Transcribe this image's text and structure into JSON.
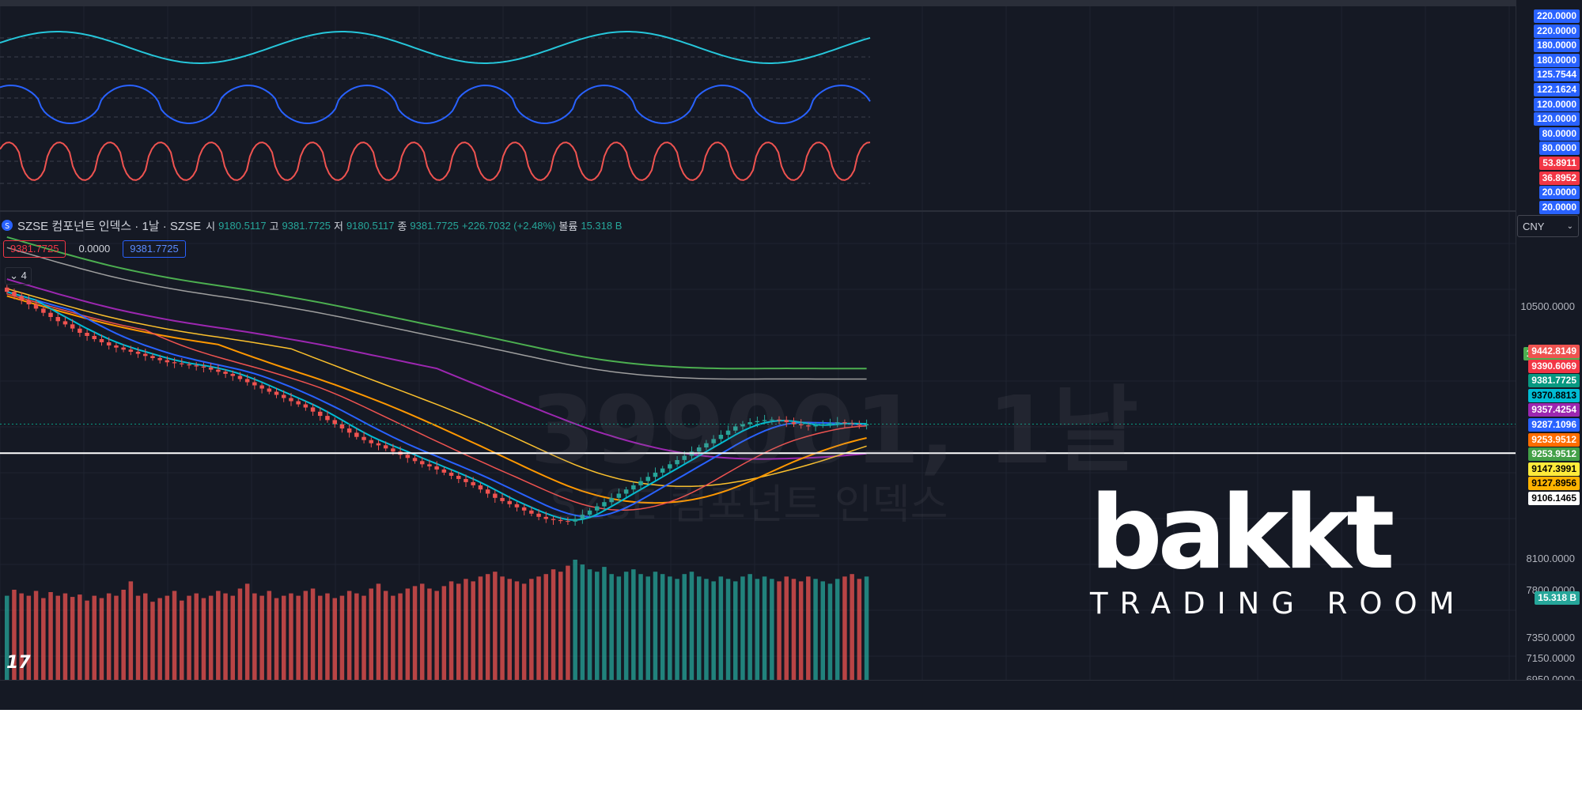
{
  "symbol": {
    "title": "SZSE 컴포넌트 인덱스 · 1날 · SZSE",
    "icon": "szse-index-icon",
    "ohlc": {
      "open_label": "시",
      "open": "9180.5117",
      "high_label": "고",
      "high": "9381.7725",
      "low_label": "저",
      "low": "9180.5117",
      "close_label": "종",
      "close": "9381.7725",
      "change": "+226.7032 (+2.48%)",
      "volume_label": "볼륨",
      "volume": "15.318 B"
    }
  },
  "badges": {
    "bid": "9381.7725",
    "spread": "0.0000",
    "ask": "9381.7725"
  },
  "indicator_count": "4",
  "currency": "CNY",
  "watermark": {
    "line1": "399001, 1날",
    "line2": "SZSE 컴포넌트 인덱스"
  },
  "logo": {
    "word": "bakkt",
    "tag": "TRADING ROOM"
  },
  "tv_logo": "17",
  "osc_scale": [
    {
      "v": "220.0000",
      "bg": "#2962ff"
    },
    {
      "v": "220.0000",
      "bg": "#2962ff"
    },
    {
      "v": "180.0000",
      "bg": "#2962ff"
    },
    {
      "v": "180.0000",
      "bg": "#2962ff"
    },
    {
      "v": "125.7544",
      "bg": "#2962ff"
    },
    {
      "v": "122.1624",
      "bg": "#2962ff"
    },
    {
      "v": "120.0000",
      "bg": "#2962ff"
    },
    {
      "v": "120.0000",
      "bg": "#2962ff"
    },
    {
      "v": "80.0000",
      "bg": "#2962ff"
    },
    {
      "v": "80.0000",
      "bg": "#2962ff"
    },
    {
      "v": "53.8911",
      "bg": "#f23645"
    },
    {
      "v": "36.8952",
      "bg": "#f23645"
    },
    {
      "v": "20.0000",
      "bg": "#2962ff"
    },
    {
      "v": "20.0000",
      "bg": "#2962ff"
    }
  ],
  "price_scale_ticks": [
    {
      "v": "10500.0000",
      "y": 10500
    },
    {
      "v": "8100.0000",
      "y": 8100
    },
    {
      "v": "7800.0000",
      "y": 7800
    },
    {
      "v": "7350.0000",
      "y": 7350
    },
    {
      "v": "7150.0000",
      "y": 7150
    },
    {
      "v": "6950.0000",
      "y": 6950
    }
  ],
  "price_labels": [
    {
      "v": "10058.0945",
      "bg": "#4caf50",
      "fg": "#ffffff"
    },
    {
      "v": "9442.8149",
      "bg": "#ef5350",
      "fg": "#ffffff"
    },
    {
      "v": "9390.6069",
      "bg": "#f23645",
      "fg": "#ffffff"
    },
    {
      "v": "9381.7725",
      "bg": "#089981",
      "fg": "#ffffff"
    },
    {
      "v": "9370.8813",
      "bg": "#00bcd4",
      "fg": "#000000"
    },
    {
      "v": "9357.4254",
      "bg": "#9c27b0",
      "fg": "#ffffff"
    },
    {
      "v": "9287.1096",
      "bg": "#2962ff",
      "fg": "#ffffff"
    },
    {
      "v": "9253.9512",
      "bg": "#ff6d00",
      "fg": "#ffffff"
    },
    {
      "v": "9253.9512",
      "bg": "#43a047",
      "fg": "#ffffff"
    },
    {
      "v": "9147.3991",
      "bg": "#ffeb3b",
      "fg": "#000000"
    },
    {
      "v": "9127.8956",
      "bg": "#ffb300",
      "fg": "#000000"
    },
    {
      "v": "9106.1465",
      "bg": "#ffffff",
      "fg": "#000000"
    }
  ],
  "volume_label": "15.318 B",
  "chart_data": [
    {
      "type": "candlestick",
      "title": "SZSE 컴포넌트 인덱스 · 1날 · SZSE",
      "ylim": [
        6950,
        11400
      ],
      "last_close": 9381.7725,
      "horizontal_line": 9106.1465,
      "close": [
        10640,
        10600,
        10560,
        10520,
        10480,
        10440,
        10400,
        10360,
        10330,
        10290,
        10250,
        10220,
        10190,
        10160,
        10130,
        10110,
        10090,
        10070,
        10050,
        10030,
        10010,
        9990,
        9970,
        9960,
        9950,
        9940,
        9930,
        9920,
        9900,
        9880,
        9860,
        9840,
        9810,
        9780,
        9750,
        9720,
        9690,
        9660,
        9630,
        9600,
        9570,
        9540,
        9500,
        9460,
        9420,
        9380,
        9340,
        9300,
        9260,
        9230,
        9200,
        9180,
        9150,
        9120,
        9090,
        9060,
        9030,
        9000,
        8980,
        8950,
        8920,
        8890,
        8860,
        8830,
        8800,
        8760,
        8720,
        8680,
        8650,
        8620,
        8590,
        8560,
        8530,
        8500,
        8480,
        8470,
        8460,
        8455,
        8480,
        8520,
        8560,
        8600,
        8640,
        8680,
        8720,
        8760,
        8800,
        8840,
        8880,
        8920,
        8960,
        9000,
        9040,
        9080,
        9120,
        9160,
        9200,
        9240,
        9280,
        9320,
        9360,
        9380,
        9400,
        9410,
        9420,
        9425,
        9420,
        9400,
        9380,
        9370,
        9360,
        9370,
        9380,
        9390,
        9400,
        9390,
        9380,
        9370,
        9381.77
      ],
      "volume_relative": [
        0.7,
        0.75,
        0.72,
        0.7,
        0.74,
        0.68,
        0.73,
        0.7,
        0.72,
        0.69,
        0.71,
        0.66,
        0.7,
        0.68,
        0.72,
        0.7,
        0.75,
        0.82,
        0.7,
        0.72,
        0.65,
        0.68,
        0.7,
        0.74,
        0.66,
        0.7,
        0.72,
        0.68,
        0.7,
        0.74,
        0.72,
        0.7,
        0.76,
        0.8,
        0.72,
        0.7,
        0.74,
        0.68,
        0.7,
        0.72,
        0.7,
        0.74,
        0.76,
        0.7,
        0.72,
        0.68,
        0.7,
        0.74,
        0.72,
        0.7,
        0.76,
        0.8,
        0.74,
        0.7,
        0.72,
        0.76,
        0.78,
        0.8,
        0.76,
        0.74,
        0.78,
        0.82,
        0.8,
        0.84,
        0.82,
        0.86,
        0.88,
        0.9,
        0.86,
        0.84,
        0.82,
        0.8,
        0.84,
        0.86,
        0.88,
        0.92,
        0.9,
        0.95,
        1.0,
        0.96,
        0.92,
        0.9,
        0.94,
        0.88,
        0.86,
        0.9,
        0.92,
        0.88,
        0.86,
        0.9,
        0.88,
        0.86,
        0.84,
        0.88,
        0.9,
        0.86,
        0.84,
        0.82,
        0.86,
        0.84,
        0.82,
        0.86,
        0.88,
        0.84,
        0.86,
        0.84,
        0.82,
        0.86,
        0.84,
        0.82,
        0.86,
        0.84,
        0.82,
        0.8,
        0.84,
        0.86,
        0.88,
        0.84,
        0.86
      ]
    }
  ],
  "colors": {
    "bg": "#151924",
    "grid": "#1f2430",
    "up": "#26a69a",
    "down": "#ef5350",
    "osc1": "#26c6da",
    "osc2": "#2962ff",
    "osc3": "#ef5350",
    "ma_green": "#4caf50",
    "ma_purple": "#9c27b0",
    "ma_orange": "#ff9800",
    "ma_yellow": "#fbc02d",
    "ma_red": "#ef5350",
    "ma_blue": "#2962ff",
    "ma_cyan": "#00bcd4",
    "ma_gray": "#9e9e9e"
  }
}
